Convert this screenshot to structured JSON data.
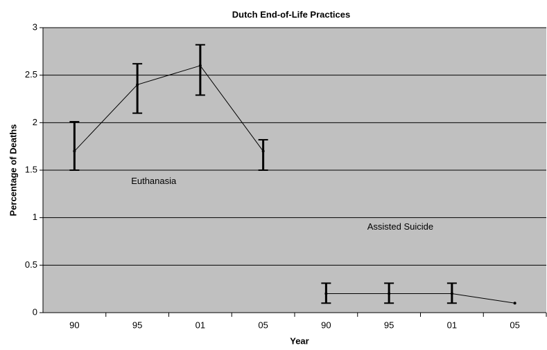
{
  "chart_data": {
    "type": "line",
    "title": "Dutch End-of-Life Practices",
    "x_label": "Year",
    "y_label": "Percentage of Deaths",
    "categories": [
      "90",
      "95",
      "01",
      "05",
      "90",
      "95",
      "01",
      "05"
    ],
    "series": [
      {
        "name": "Euthanasia",
        "color": "#000000",
        "values": [
          1.7,
          2.4,
          2.6,
          1.7,
          null,
          null,
          null,
          null
        ],
        "error_minus": [
          0.2,
          0.3,
          0.31,
          0.2,
          null,
          null,
          null,
          null
        ],
        "error_plus": [
          0.31,
          0.22,
          0.22,
          0.12,
          null,
          null,
          null,
          null
        ]
      },
      {
        "name": "Assisted Suicide",
        "color": "#000000",
        "values": [
          null,
          null,
          null,
          null,
          0.2,
          0.2,
          0.2,
          0.1
        ],
        "error_minus": [
          null,
          null,
          null,
          null,
          0.1,
          0.1,
          0.1,
          null
        ],
        "error_plus": [
          null,
          null,
          null,
          null,
          0.11,
          0.11,
          0.11,
          null
        ]
      }
    ],
    "ylim": [
      0,
      3
    ],
    "yticks": [
      0,
      0.5,
      1,
      1.5,
      2,
      2.5,
      3
    ],
    "grid": true,
    "plot_background": "#c0c0c0"
  }
}
